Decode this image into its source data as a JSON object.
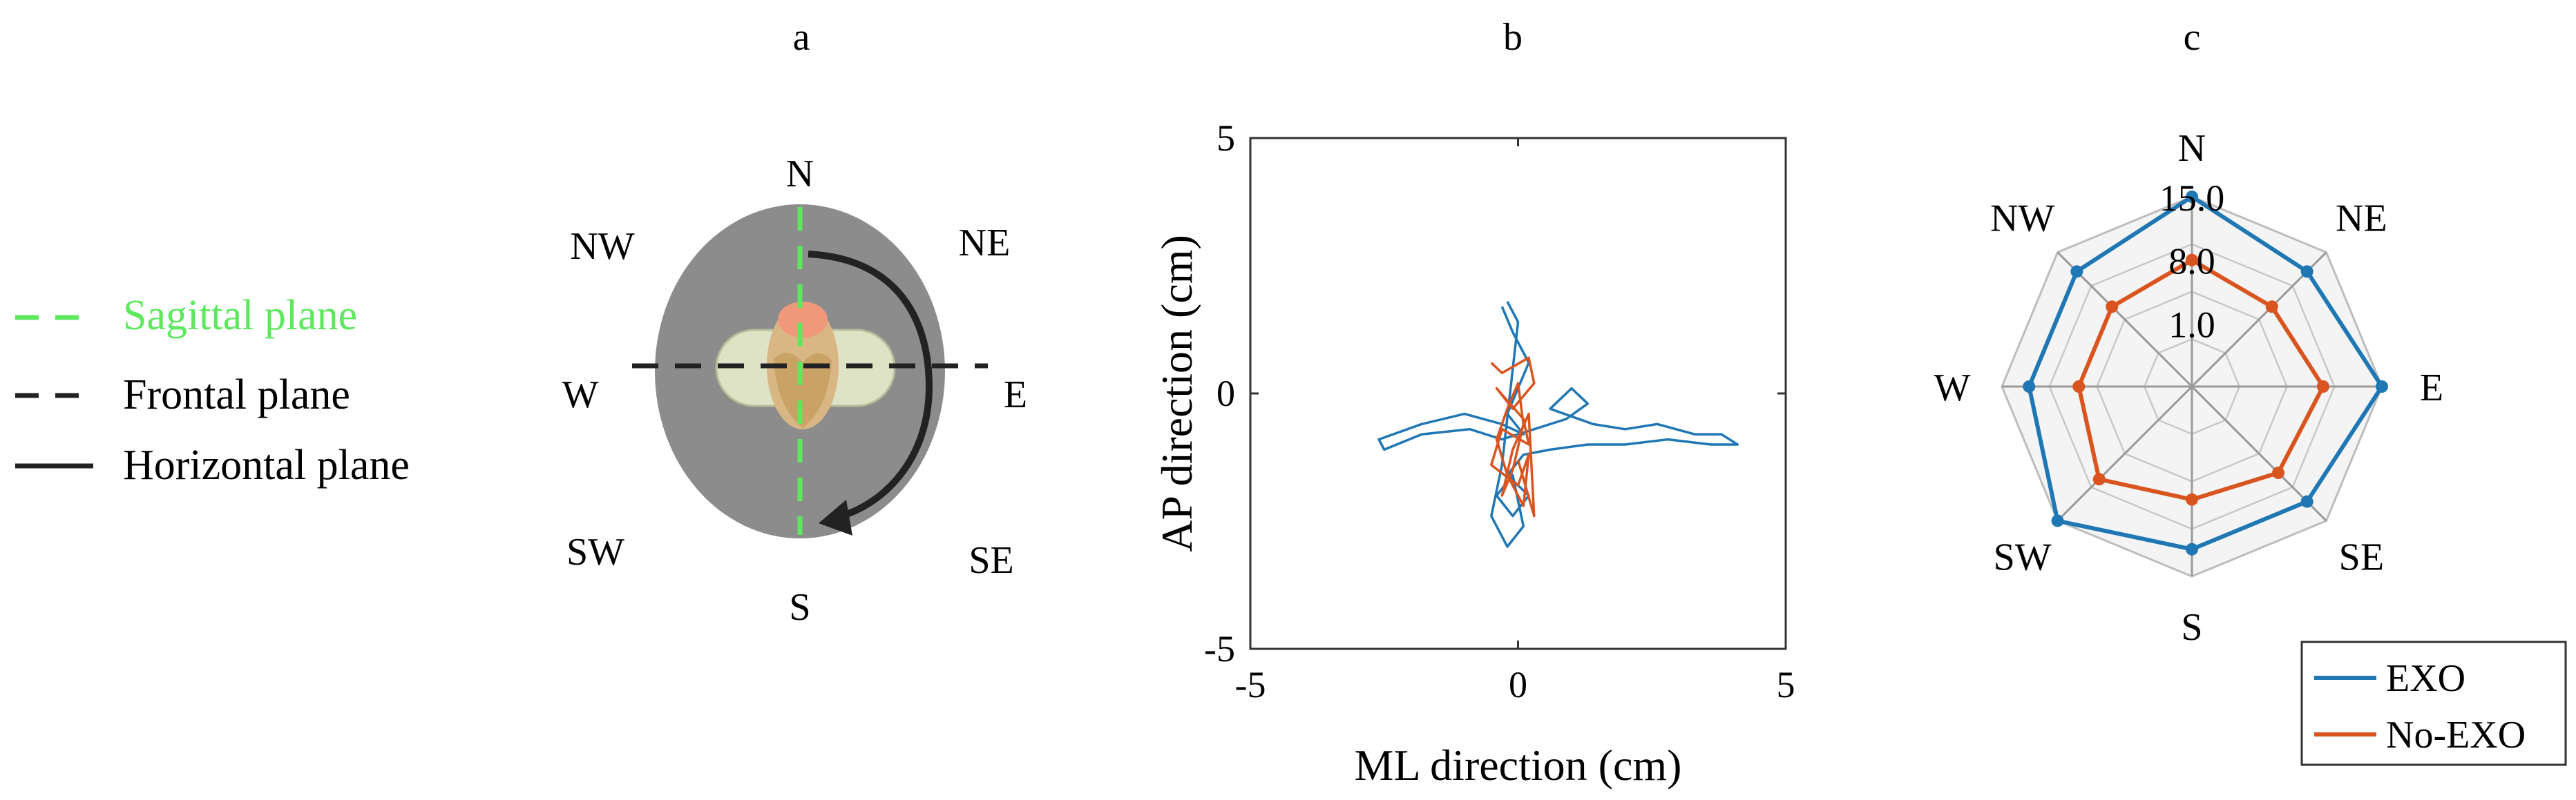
{
  "panels": {
    "a": {
      "label": "a",
      "legend": [
        {
          "label": "Sagittal plane",
          "color": "#5ee85e",
          "style": "dashed"
        },
        {
          "label": "Frontal plane",
          "color": "#222222",
          "style": "dashed"
        },
        {
          "label": "Horizontal plane",
          "color": "#222222",
          "style": "solid"
        }
      ],
      "directions": {
        "N": "N",
        "NE": "NE",
        "E": "E",
        "SE": "SE",
        "S": "S",
        "SW": "SW",
        "W": "W",
        "NW": "NW"
      }
    },
    "b": {
      "label": "b"
    },
    "c": {
      "label": "c"
    }
  },
  "chart_data": [
    {
      "type": "line",
      "panel": "b",
      "xlabel": "ML direction (cm)",
      "ylabel": "AP direction (cm)",
      "xlim": [
        -5,
        5
      ],
      "ylim": [
        -5,
        5
      ],
      "xticks": [
        -5,
        0,
        5
      ],
      "yticks": [
        -5,
        0,
        5
      ],
      "series": [
        {
          "color": "#1f77b4",
          "x": [
            -0.3,
            -0.1,
            0.2,
            0.0,
            -0.2,
            0.1,
            -0.3,
            -1.0,
            -1.8,
            -2.6,
            -2.5,
            -1.8,
            -0.9,
            -0.3,
            0.3,
            0.9,
            1.3,
            1.0,
            0.6,
            1.4,
            2.0,
            2.6,
            3.3,
            3.8,
            4.1,
            3.6,
            2.8,
            2.0,
            1.3,
            0.6,
            0.1,
            -0.2,
            0.2,
            -0.1,
            -0.4,
            -0.1,
            0.1,
            -0.2,
            -0.5,
            -0.3,
            0.0,
            -0.2
          ],
          "y": [
            1.7,
            1.2,
            0.6,
            0.1,
            -0.4,
            -0.8,
            -0.6,
            -0.4,
            -0.6,
            -0.9,
            -1.1,
            -0.8,
            -0.7,
            -0.9,
            -0.7,
            -0.5,
            -0.2,
            0.1,
            -0.3,
            -0.6,
            -0.7,
            -0.6,
            -0.8,
            -0.8,
            -1.0,
            -1.0,
            -0.9,
            -1.0,
            -1.0,
            -1.1,
            -1.2,
            -1.6,
            -2.0,
            -2.4,
            -2.0,
            -1.6,
            -2.6,
            -3.0,
            -2.4,
            -1.4,
            1.4,
            1.8
          ]
        },
        {
          "color": "#d9541e",
          "x": [
            -0.5,
            -0.3,
            0.2,
            0.3,
            -0.1,
            -0.4,
            0.1,
            0.2,
            -0.3,
            -0.5,
            0.0,
            0.2,
            0.1,
            -0.2,
            -0.4,
            -0.2,
            0.0,
            0.1,
            -0.1,
            -0.3,
            -0.1,
            0.2,
            0.3,
            0.0
          ],
          "y": [
            0.6,
            0.4,
            0.7,
            0.2,
            -0.3,
            0.1,
            -0.5,
            -1.0,
            -0.7,
            -1.4,
            -1.8,
            -1.2,
            -2.2,
            -1.6,
            -0.9,
            -0.3,
            0.2,
            -0.6,
            -1.5,
            -2.0,
            -1.1,
            -0.4,
            -2.4,
            -1.3
          ]
        }
      ]
    },
    {
      "type": "radar",
      "panel": "c",
      "categories": [
        "N",
        "NE",
        "E",
        "SE",
        "S",
        "SW",
        "W",
        "NW"
      ],
      "rticks": [
        1.0,
        8.0,
        15.0
      ],
      "rtick_labels": [
        "1.0",
        "8.0",
        "15.0"
      ],
      "rlim": [
        -6,
        15
      ],
      "legend_position": "bottom-right",
      "series": [
        {
          "name": "EXO",
          "color": "#1f77b4",
          "values": [
            15.0,
            12.0,
            15.0,
            12.0,
            12.0,
            15.0,
            12.0,
            12.0
          ]
        },
        {
          "name": "No-EXO",
          "color": "#d9541e",
          "values": [
            8.0,
            6.5,
            8.5,
            7.5,
            6.5,
            8.5,
            6.5,
            6.5
          ]
        }
      ]
    }
  ]
}
